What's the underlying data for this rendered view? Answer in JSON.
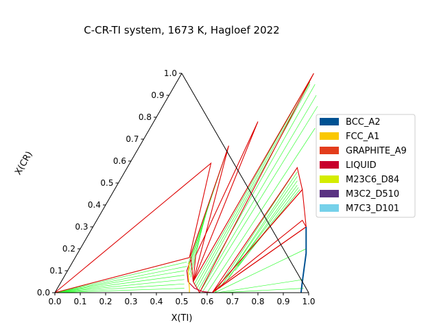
{
  "chart_data": {
    "type": "ternary",
    "title": "C-CR-TI system, 1673 K, Hagloef 2022",
    "xlabel": "X(TI)",
    "ylabel": "X(CR)",
    "xlim": [
      0.0,
      1.0
    ],
    "ylim": [
      0.0,
      1.0
    ],
    "ticks": [
      "0.0",
      "0.1",
      "0.2",
      "0.3",
      "0.4",
      "0.5",
      "0.6",
      "0.7",
      "0.8",
      "0.9",
      "1.0"
    ],
    "grid": false,
    "legend_position": "right",
    "legend": [
      {
        "name": "BCC_A2",
        "color": "#005293"
      },
      {
        "name": "FCC_A1",
        "color": "#fac800"
      },
      {
        "name": "GRAPHITE_A9",
        "color": "#e33d1c"
      },
      {
        "name": "LIQUID",
        "color": "#c8002d"
      },
      {
        "name": "M23C6_D84",
        "color": "#d4ec00"
      },
      {
        "name": "M3C2_D510",
        "color": "#5a3282"
      },
      {
        "name": "M7C3_D101",
        "color": "#76d1ea"
      }
    ],
    "three_phase_triangles": [
      [
        [
          0.0,
          0.0
        ],
        [
          0.32,
          0.59
        ],
        [
          0.45,
          0.16
        ]
      ],
      [
        [
          0.35,
          0.67
        ],
        [
          0.45,
          0.17
        ],
        [
          0.52,
          0.05
        ]
      ],
      [
        [
          0.41,
          0.78
        ],
        [
          0.47,
          0.17
        ],
        [
          0.52,
          0.05
        ]
      ],
      [
        [
          0.52,
          1.0
        ],
        [
          0.52,
          0.05
        ],
        [
          0.57,
          0.0
        ]
      ],
      [
        [
          0.67,
          0.57
        ],
        [
          0.62,
          0.0
        ],
        [
          0.74,
          0.47
        ]
      ],
      [
        [
          0.74,
          0.47
        ],
        [
          0.62,
          0.0
        ],
        [
          0.84,
          0.3
        ]
      ],
      [
        [
          0.81,
          0.33
        ],
        [
          0.62,
          0.0
        ],
        [
          0.84,
          0.3
        ]
      ]
    ],
    "liquid_boundary": [
      [
        0.46,
        0.15
      ],
      [
        0.47,
        0.1
      ],
      [
        0.5,
        0.05
      ],
      [
        0.54,
        0.02
      ],
      [
        0.58,
        0.005
      ],
      [
        0.62,
        0.0
      ]
    ],
    "fcc_boundary": [
      [
        0.46,
        0.14
      ],
      [
        0.48,
        0.09
      ],
      [
        0.52,
        0.02
      ],
      [
        0.53,
        0.0
      ]
    ],
    "bcc_boundary": [
      [
        0.84,
        0.3
      ],
      [
        0.9,
        0.18
      ],
      [
        0.95,
        0.05
      ],
      [
        0.97,
        0.0
      ]
    ],
    "tie_lines": [
      [
        [
          0.0,
          0.0
        ],
        [
          0.45,
          0.16
        ]
      ],
      [
        [
          0.0,
          0.0
        ],
        [
          0.45,
          0.14
        ]
      ],
      [
        [
          0.0,
          0.0
        ],
        [
          0.46,
          0.12
        ]
      ],
      [
        [
          0.0,
          0.0
        ],
        [
          0.46,
          0.1
        ]
      ],
      [
        [
          0.0,
          0.0
        ],
        [
          0.47,
          0.08
        ]
      ],
      [
        [
          0.0,
          0.0
        ],
        [
          0.48,
          0.06
        ]
      ],
      [
        [
          0.0,
          0.0
        ],
        [
          0.49,
          0.04
        ]
      ],
      [
        [
          0.0,
          0.0
        ],
        [
          0.5,
          0.02
        ]
      ],
      [
        [
          0.0,
          0.0
        ],
        [
          0.51,
          0.0
        ]
      ],
      [
        [
          0.35,
          0.67
        ],
        [
          0.45,
          0.17
        ]
      ],
      [
        [
          0.36,
          0.62
        ],
        [
          0.46,
          0.15
        ]
      ],
      [
        [
          0.37,
          0.57
        ],
        [
          0.46,
          0.13
        ]
      ],
      [
        [
          0.38,
          0.52
        ],
        [
          0.47,
          0.11
        ]
      ],
      [
        [
          0.39,
          0.47
        ],
        [
          0.48,
          0.09
        ]
      ],
      [
        [
          0.4,
          0.42
        ],
        [
          0.49,
          0.08
        ]
      ],
      [
        [
          0.41,
          0.37
        ],
        [
          0.5,
          0.07
        ]
      ],
      [
        [
          0.52,
          1.0
        ],
        [
          0.52,
          0.06
        ]
      ],
      [
        [
          0.52,
          0.98
        ],
        [
          0.53,
          0.04
        ]
      ],
      [
        [
          0.525,
          0.96
        ],
        [
          0.54,
          0.03
        ]
      ],
      [
        [
          0.53,
          0.95
        ],
        [
          0.55,
          0.02
        ]
      ],
      [
        [
          0.55,
          0.95
        ],
        [
          0.56,
          0.01
        ]
      ],
      [
        [
          0.58,
          0.9
        ],
        [
          0.57,
          0.005
        ]
      ],
      [
        [
          0.61,
          0.85
        ],
        [
          0.58,
          0.0
        ]
      ],
      [
        [
          0.65,
          0.75
        ],
        [
          0.6,
          0.0
        ]
      ],
      [
        [
          0.67,
          0.57
        ],
        [
          0.63,
          0.0
        ]
      ],
      [
        [
          0.68,
          0.55
        ],
        [
          0.64,
          0.02
        ]
      ],
      [
        [
          0.69,
          0.53
        ],
        [
          0.64,
          0.03
        ]
      ],
      [
        [
          0.7,
          0.51
        ],
        [
          0.65,
          0.05
        ]
      ],
      [
        [
          0.71,
          0.49
        ],
        [
          0.65,
          0.07
        ]
      ],
      [
        [
          0.72,
          0.48
        ],
        [
          0.66,
          0.1
        ]
      ],
      [
        [
          0.73,
          0.47
        ],
        [
          0.66,
          0.12
        ]
      ],
      [
        [
          0.84,
          0.3
        ],
        [
          0.62,
          0.0
        ]
      ],
      [
        [
          0.89,
          0.2
        ],
        [
          0.63,
          0.0
        ]
      ],
      [
        [
          0.95,
          0.06
        ],
        [
          0.64,
          0.0
        ]
      ],
      [
        [
          0.97,
          0.02
        ],
        [
          0.65,
          0.0
        ]
      ]
    ]
  }
}
